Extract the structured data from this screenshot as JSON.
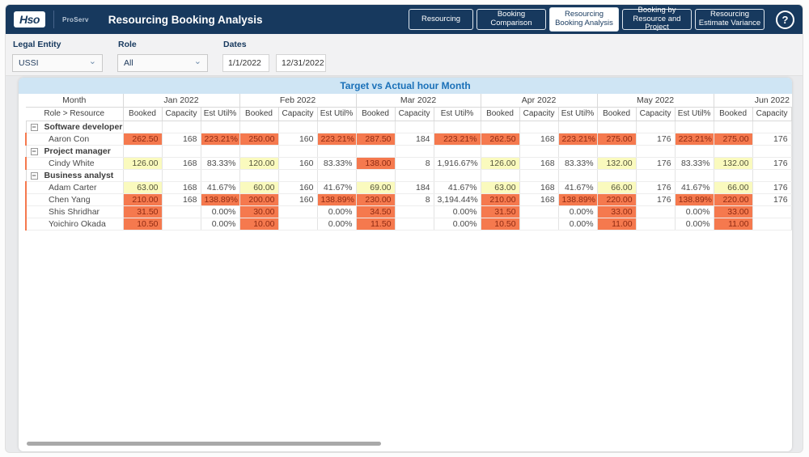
{
  "app": {
    "logo_text": "Hso",
    "product_name": "ProServ",
    "title": "Resourcing Booking Analysis",
    "help_icon": "?",
    "nav_buttons": [
      {
        "label": "Resourcing",
        "active": false
      },
      {
        "label": "Booking Comparison",
        "active": false
      },
      {
        "label": "Resourcing Booking Analysis",
        "active": true
      },
      {
        "label": "Booking by Resource and Project",
        "active": false
      },
      {
        "label": "Resourcing Estimate Variance",
        "active": false
      }
    ]
  },
  "filters": {
    "legal_entity_label": "Legal Entity",
    "legal_entity_value": "USSI",
    "role_label": "Role",
    "role_value": "All",
    "dates_label": "Dates",
    "date_start": "1/1/2022",
    "date_end": "12/31/2022",
    "dropdown_chevron": "⌄"
  },
  "table": {
    "title": "Target vs Actual hour Month",
    "corner_top": "Month",
    "corner_bottom": "Role > Resource",
    "months": [
      "Jan 2022",
      "Feb 2022",
      "Mar 2022",
      "Apr 2022",
      "May 2022",
      "Jun 2022"
    ],
    "metrics": [
      "Booked",
      "Capacity",
      "Est Util%"
    ],
    "collapse_glyph": "−",
    "groups": [
      {
        "label": "Software developer",
        "rows": [
          {
            "name": "Aaron Con",
            "values": [
              [
                "262.50",
                "o",
                "168",
                "223.21%",
                "o"
              ],
              [
                "250.00",
                "o",
                "160",
                "223.21%",
                "o"
              ],
              [
                "287.50",
                "o",
                "184",
                "223.21%",
                "o"
              ],
              [
                "262.50",
                "o",
                "168",
                "223.21%",
                "o"
              ],
              [
                "275.00",
                "o",
                "176",
                "223.21%",
                "o"
              ],
              [
                "275.00",
                "o",
                "176",
                "",
                ""
              ]
            ]
          }
        ]
      },
      {
        "label": "Project manager",
        "rows": [
          {
            "name": "Cindy White",
            "values": [
              [
                "126.00",
                "y",
                "168",
                "83.33%",
                ""
              ],
              [
                "120.00",
                "y",
                "160",
                "83.33%",
                ""
              ],
              [
                "138.00",
                "o",
                "8",
                "1,916.67%",
                ""
              ],
              [
                "126.00",
                "y",
                "168",
                "83.33%",
                ""
              ],
              [
                "132.00",
                "y",
                "176",
                "83.33%",
                ""
              ],
              [
                "132.00",
                "y",
                "176",
                "",
                ""
              ]
            ]
          }
        ]
      },
      {
        "label": "Business analyst",
        "rows": [
          {
            "name": "Adam Carter",
            "values": [
              [
                "63.00",
                "y",
                "168",
                "41.67%",
                ""
              ],
              [
                "60.00",
                "y",
                "160",
                "41.67%",
                ""
              ],
              [
                "69.00",
                "y",
                "184",
                "41.67%",
                ""
              ],
              [
                "63.00",
                "y",
                "168",
                "41.67%",
                ""
              ],
              [
                "66.00",
                "y",
                "176",
                "41.67%",
                ""
              ],
              [
                "66.00",
                "y",
                "176",
                "",
                ""
              ]
            ]
          },
          {
            "name": "Chen Yang",
            "values": [
              [
                "210.00",
                "o",
                "168",
                "138.89%",
                "o"
              ],
              [
                "200.00",
                "o",
                "160",
                "138.89%",
                "o"
              ],
              [
                "230.00",
                "o",
                "8",
                "3,194.44%",
                ""
              ],
              [
                "210.00",
                "o",
                "168",
                "138.89%",
                "o"
              ],
              [
                "220.00",
                "o",
                "176",
                "138.89%",
                "o"
              ],
              [
                "220.00",
                "o",
                "176",
                "",
                ""
              ]
            ]
          },
          {
            "name": "Shis Shridhar",
            "values": [
              [
                "31.50",
                "o",
                "",
                "0.00%",
                ""
              ],
              [
                "30.00",
                "o",
                "",
                "0.00%",
                ""
              ],
              [
                "34.50",
                "o",
                "",
                "0.00%",
                ""
              ],
              [
                "31.50",
                "o",
                "",
                "0.00%",
                ""
              ],
              [
                "33.00",
                "o",
                "",
                "0.00%",
                ""
              ],
              [
                "33.00",
                "o",
                "",
                "",
                ""
              ]
            ]
          },
          {
            "name": "Yoichiro Okada",
            "values": [
              [
                "10.50",
                "o",
                "",
                "0.00%",
                ""
              ],
              [
                "10.00",
                "o",
                "",
                "0.00%",
                ""
              ],
              [
                "11.50",
                "o",
                "",
                "0.00%",
                ""
              ],
              [
                "10.50",
                "o",
                "",
                "0.00%",
                ""
              ],
              [
                "11.00",
                "o",
                "",
                "0.00%",
                ""
              ],
              [
                "11.00",
                "o",
                "",
                "",
                ""
              ]
            ]
          }
        ]
      }
    ]
  },
  "colors": {
    "header_navy": "#17395e",
    "title_bar_bg": "#cfe5f4",
    "title_bar_text": "#1a70b8",
    "cell_orange_bg": "#f5794e",
    "cell_orange_text": "#8f2a12",
    "cell_yellow_bg": "#fafabe",
    "cell_yellow_text": "#55553c"
  }
}
